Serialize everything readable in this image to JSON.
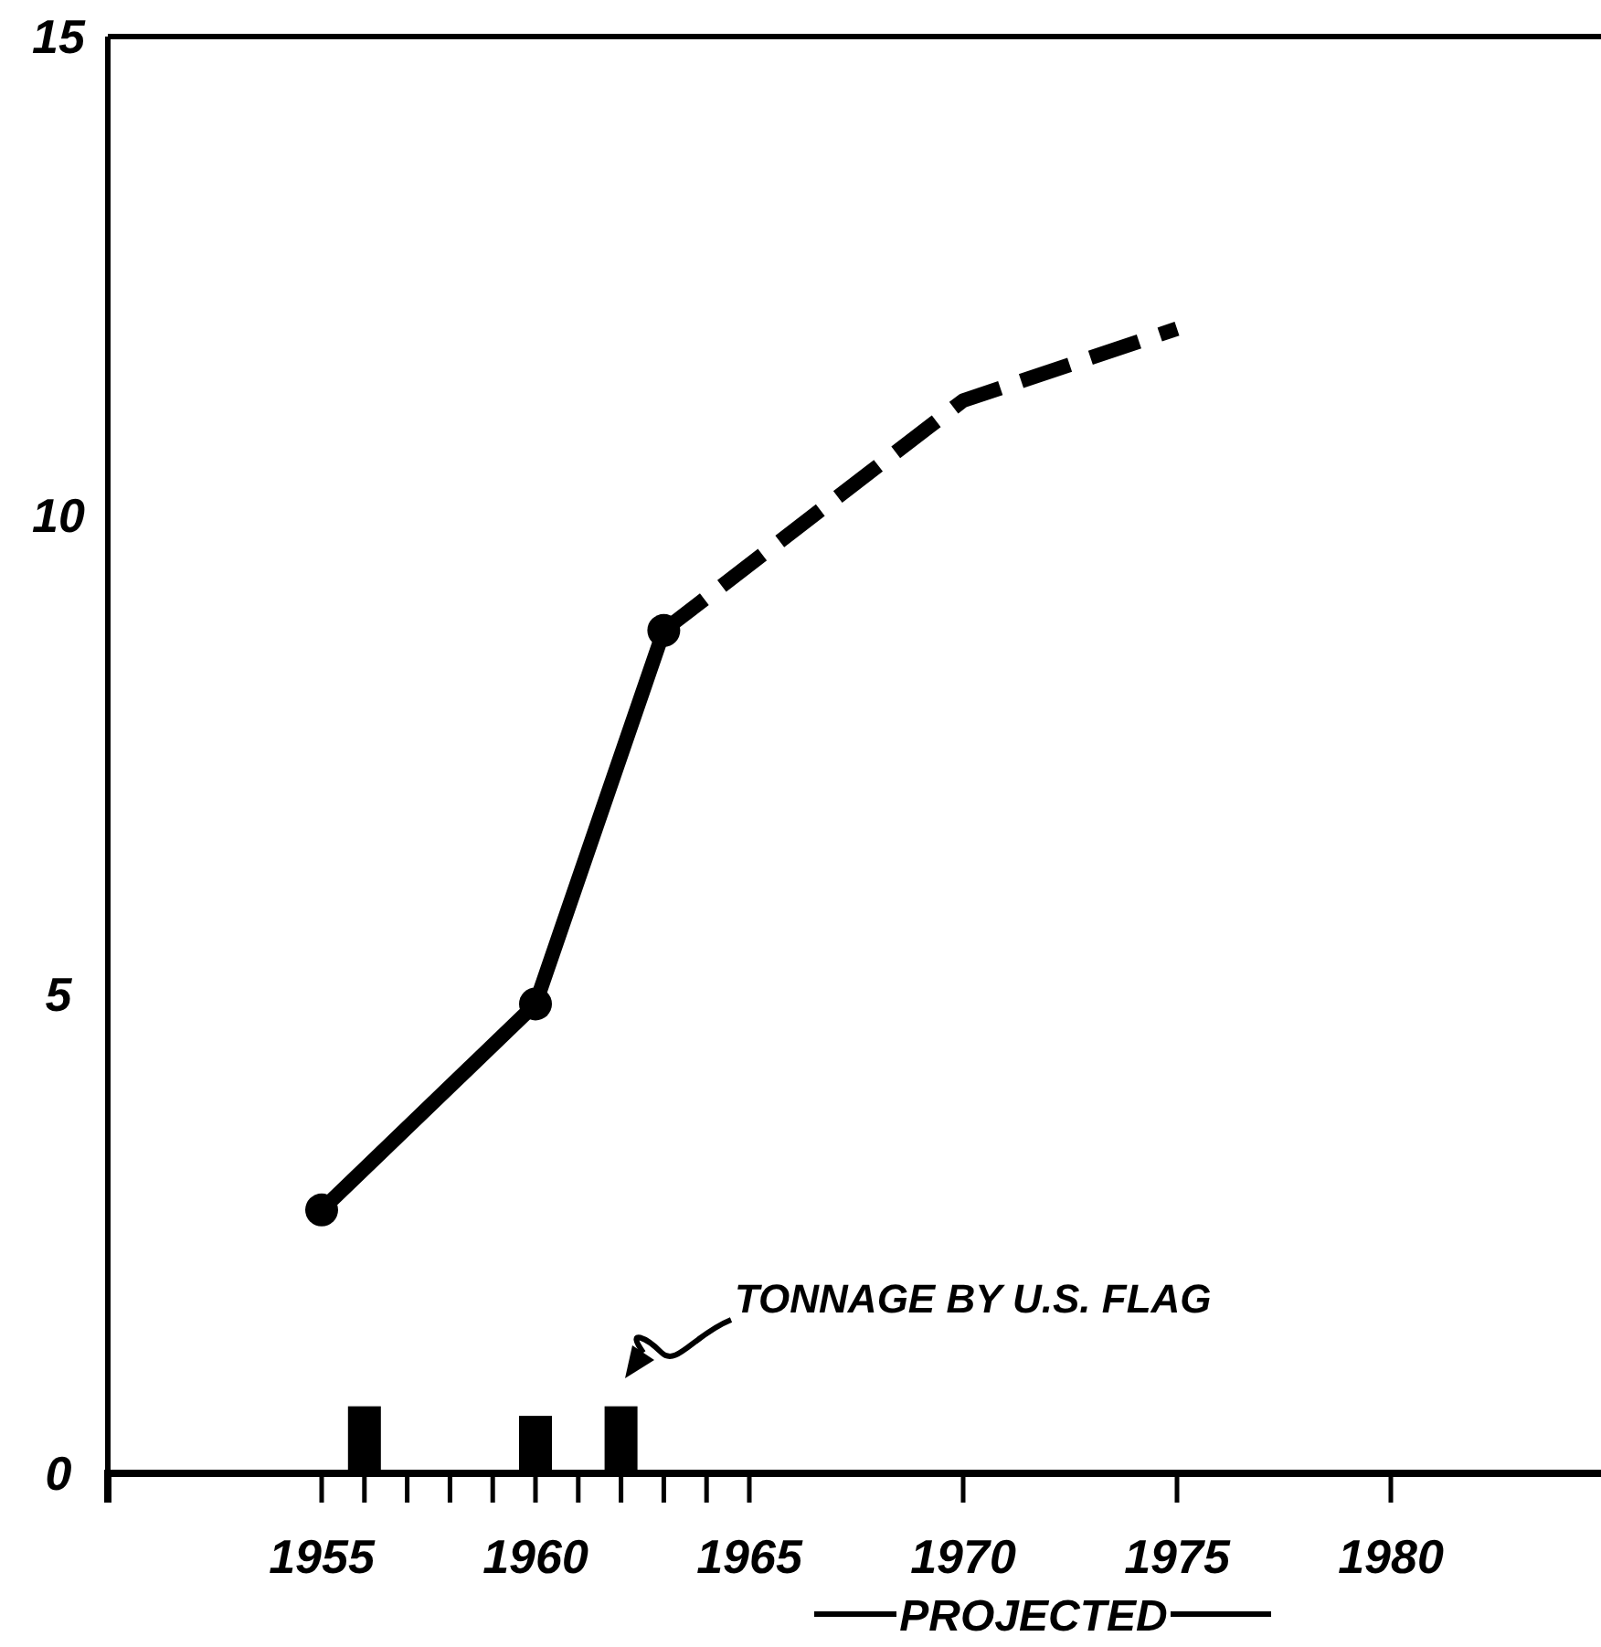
{
  "chart_data": {
    "type": "line",
    "xlim": [
      1950,
      1985
    ],
    "ylim": [
      0,
      15
    ],
    "xticks": [
      1955,
      {
        "value": 1956,
        "label": null
      },
      {
        "value": 1957,
        "label": null
      },
      {
        "value": 1958,
        "label": null
      },
      {
        "value": 1959,
        "label": null
      },
      1960,
      {
        "value": 1961,
        "label": null
      },
      {
        "value": 1962,
        "label": null
      },
      {
        "value": 1963,
        "label": null
      },
      {
        "value": 1964,
        "label": null
      },
      1965,
      1970,
      1975,
      1980
    ],
    "yticks": [
      0,
      5,
      10,
      15
    ],
    "series": [
      {
        "color": "#000000",
        "x": [
          1955,
          1960,
          1963
        ],
        "values": [
          2.75,
          4.9,
          8.8
        ],
        "marker": "circle",
        "line_style": "solid"
      },
      {
        "color": "#000000",
        "x": [
          1963,
          1970,
          1975
        ],
        "values": [
          8.8,
          11.2,
          11.95
        ],
        "marker": "none",
        "line_style": "dashed"
      },
      {
        "type": "bar",
        "color": "#000000",
        "x": [
          1956,
          1960,
          1962
        ],
        "values": [
          0.7,
          0.6,
          0.7
        ]
      }
    ],
    "annotations": [
      "TONNAGE BY U.S. FLAG",
      "PROJECTED"
    ]
  }
}
